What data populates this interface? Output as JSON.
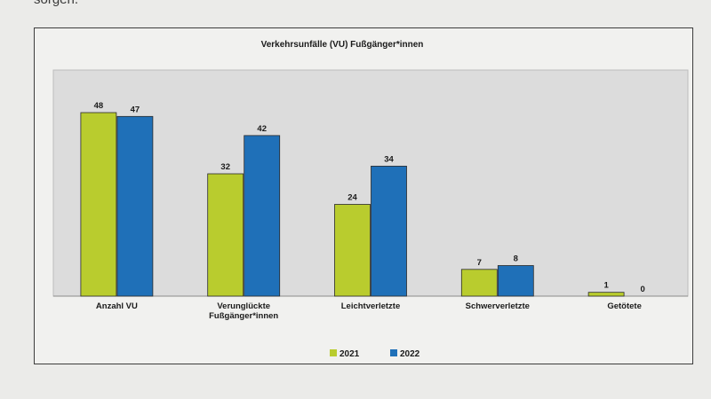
{
  "page": {
    "top_text": "sorgen."
  },
  "chart_data": {
    "type": "bar",
    "title": "Verkehrsunfälle (VU) Fußgänger*innen",
    "categories": [
      "Anzahl VU",
      "Verunglückte Fußgänger*innen",
      "Leichtverletzte",
      "Schwerverletzte",
      "Getötete"
    ],
    "series": [
      {
        "name": "2021",
        "values": [
          48,
          32,
          24,
          7,
          1
        ],
        "color": "#b9cc2e"
      },
      {
        "name": "2022",
        "values": [
          47,
          42,
          34,
          8,
          0
        ],
        "color": "#1f70b8"
      }
    ],
    "ylim": [
      0,
      48
    ],
    "grid": false,
    "legend_position": "bottom-center",
    "plot_background": "#dcdcdc"
  }
}
